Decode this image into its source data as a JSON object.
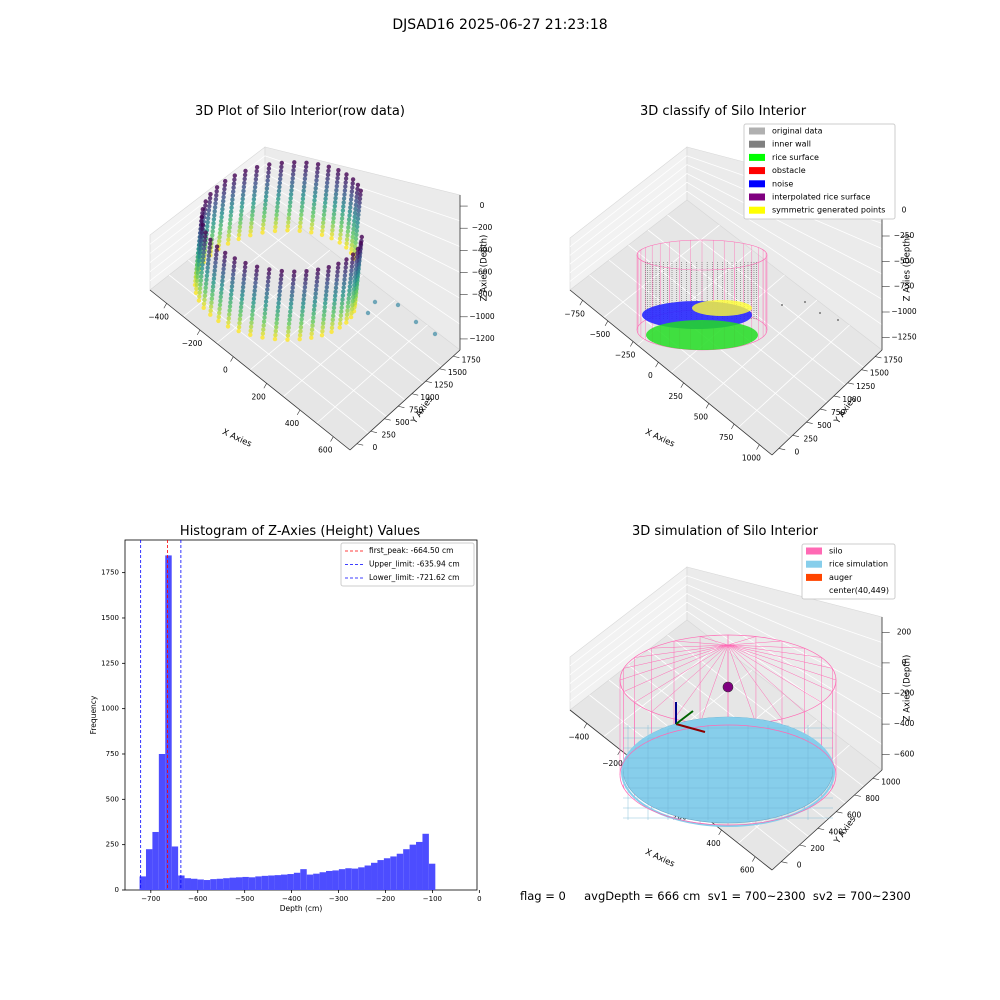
{
  "suptitle": "DJSAD16 2025-06-27 21:23:18",
  "footer": "flag = 0     avgDepth = 666 cm  sv1 = 700~2300  sv2 = 700~2300",
  "chart_data": [
    {
      "type": "scatter",
      "subtype": "3d",
      "title": "3D Plot of Silo Interior(row data)",
      "xlabel": "X Axies",
      "ylabel": "Y Axies",
      "zlabel": "Z Axies (Depth)",
      "xticks": [
        "−400",
        "−200",
        "0",
        "200",
        "400",
        "600"
      ],
      "yticks": [
        "0",
        "250",
        "500",
        "750",
        "1000",
        "1250",
        "1500",
        "1750"
      ],
      "zticks": [
        "0",
        "−200",
        "−400",
        "−600",
        "−800",
        "−1000",
        "−1200"
      ],
      "colormap": "viridis"
    },
    {
      "type": "scatter",
      "subtype": "3d",
      "title": "3D classify of Silo Interior",
      "xlabel": "X Axies",
      "ylabel": "Y Axies",
      "zlabel": "Z Axies (Depth)",
      "xticks": [
        "−750",
        "−500",
        "−250",
        "0",
        "250",
        "500",
        "750",
        "1000"
      ],
      "yticks": [
        "0",
        "250",
        "500",
        "750",
        "1000",
        "1250",
        "1500",
        "1750"
      ],
      "zticks": [
        "0",
        "−250",
        "−500",
        "−750",
        "−1000",
        "−1250"
      ],
      "legend_position": "top-right",
      "legend": [
        {
          "label": "original data",
          "color": "#b0b0b0"
        },
        {
          "label": "inner wall",
          "color": "#808080"
        },
        {
          "label": "rice surface",
          "color": "#00ff00"
        },
        {
          "label": "obstacle",
          "color": "#ff0000"
        },
        {
          "label": "noise",
          "color": "#0000ff"
        },
        {
          "label": "interpolated rice surface",
          "color": "#800080"
        },
        {
          "label": "symmetric generated points",
          "color": "#ffff00"
        }
      ]
    },
    {
      "type": "bar",
      "subtype": "histogram",
      "title": "Histogram of Z-Axies (Height) Values",
      "xlabel": "Depth (cm)",
      "ylabel": "Frequency",
      "xlim": [
        -755,
        -5
      ],
      "ylim": [
        0,
        1930
      ],
      "xticks": [
        -700,
        -600,
        -500,
        -400,
        -300,
        -200,
        -100,
        0
      ],
      "xtick_labels": [
        "−700",
        "−600",
        "−500",
        "−400",
        "−300",
        "−200",
        "−100",
        "0"
      ],
      "yticks": [
        0,
        250,
        500,
        750,
        1000,
        1250,
        1500,
        1750
      ],
      "bar_color": "#4d4dff",
      "bin_width": 13.7,
      "bin_edges_start": -724,
      "values": [
        75,
        225,
        320,
        750,
        1845,
        240,
        80,
        65,
        62,
        58,
        55,
        60,
        62,
        65,
        68,
        70,
        72,
        70,
        75,
        78,
        80,
        82,
        85,
        88,
        95,
        115,
        85,
        90,
        98,
        105,
        108,
        115,
        120,
        118,
        125,
        135,
        150,
        165,
        175,
        185,
        200,
        225,
        250,
        265,
        310,
        145
      ],
      "lines": [
        {
          "label": "first_peak: -664.50 cm",
          "value": -664.5,
          "color": "#ff0000"
        },
        {
          "label": "Upper_limit: -635.94 cm",
          "value": -635.94,
          "color": "#0000ff"
        },
        {
          "label": "Lower_limit: -721.62 cm",
          "value": -721.62,
          "color": "#0000ff"
        }
      ],
      "legend_position": "top-right"
    },
    {
      "type": "scatter",
      "subtype": "3d",
      "title": "3D simulation of Silo Interior",
      "xlabel": "X Axies",
      "ylabel": "Y Axies",
      "zlabel": "Z Axies (Depth)",
      "xticks": [
        "−400",
        "−200",
        "0",
        "200",
        "400",
        "600"
      ],
      "yticks": [
        "0",
        "200",
        "400",
        "600",
        "800",
        "1000"
      ],
      "zticks": [
        "200",
        "0",
        "−200",
        "−400",
        "−600"
      ],
      "legend_position": "top-right",
      "legend": [
        {
          "label": "silo",
          "color": "#ff69b4"
        },
        {
          "label": "rice simulation",
          "color": "#87ceeb"
        },
        {
          "label": "auger",
          "color": "#ff4500"
        },
        {
          "label": "center(40,449)",
          "color": ""
        }
      ]
    }
  ]
}
